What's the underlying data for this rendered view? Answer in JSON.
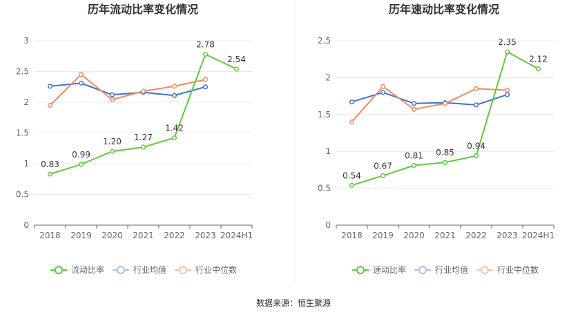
{
  "source_text": "数据来源：恒生聚源",
  "chart_data": [
    {
      "type": "line",
      "title": "历年流动比率变化情况",
      "categories": [
        "2018",
        "2019",
        "2020",
        "2021",
        "2022",
        "2023",
        "2024H1"
      ],
      "yticks": [
        "0",
        "0.5",
        "1",
        "1.5",
        "2",
        "2.5",
        "3"
      ],
      "ylim": [
        0,
        3
      ],
      "grid": true,
      "legend_position": "bottom",
      "series": [
        {
          "name": "流动比率",
          "color": "#5cc93a",
          "values": [
            0.83,
            0.99,
            1.2,
            1.27,
            1.42,
            2.78,
            2.54
          ],
          "labels": [
            "0.83",
            "0.99",
            "1.20",
            "1.27",
            "1.42",
            "2.78",
            "2.54"
          ]
        },
        {
          "name": "行业均值",
          "color": "#3f6fd6",
          "values": [
            2.26,
            2.31,
            2.12,
            2.16,
            2.11,
            2.25,
            null
          ]
        },
        {
          "name": "行业中位数",
          "color": "#f08a5d",
          "values": [
            1.95,
            2.45,
            2.04,
            2.18,
            2.26,
            2.37,
            null
          ]
        }
      ]
    },
    {
      "type": "line",
      "title": "历年速动比率变化情况",
      "categories": [
        "2018",
        "2019",
        "2020",
        "2021",
        "2022",
        "2023",
        "2024H1"
      ],
      "yticks": [
        "0",
        "0.5",
        "1",
        "1.5",
        "2",
        "2.5"
      ],
      "ylim": [
        0,
        2.5
      ],
      "grid": true,
      "legend_position": "bottom",
      "series": [
        {
          "name": "速动比率",
          "color": "#5cc93a",
          "values": [
            0.54,
            0.67,
            0.81,
            0.85,
            0.94,
            2.35,
            2.12
          ],
          "labels": [
            "0.54",
            "0.67",
            "0.81",
            "0.85",
            "0.94",
            "2.35",
            "2.12"
          ]
        },
        {
          "name": "行业均值",
          "color": "#3f6fd6",
          "values": [
            1.67,
            1.8,
            1.65,
            1.66,
            1.63,
            1.77,
            null
          ]
        },
        {
          "name": "行业中位数",
          "color": "#f08a5d",
          "values": [
            1.4,
            1.88,
            1.57,
            1.65,
            1.85,
            1.83,
            null
          ]
        }
      ]
    }
  ]
}
